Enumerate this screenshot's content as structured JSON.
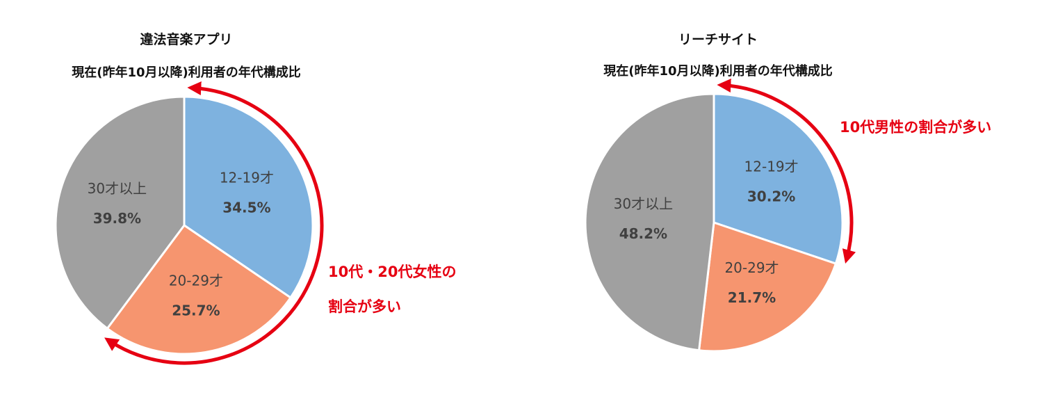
{
  "colors": {
    "age_12_19": "#7EB2DF",
    "age_20_29": "#F6956F",
    "age_30_plus": "#A0A0A0",
    "annotation_red": "#E60012",
    "label_text": "#404040",
    "title_text": "#111111"
  },
  "chart_data": [
    {
      "type": "pie",
      "title": "違法音楽アプリ",
      "subtitle": "現在(昨年10月以降)利用者の年代構成比",
      "slices": [
        {
          "label": "12-19才",
          "value": 34.5,
          "value_text": "34.5%",
          "color_key": "age_12_19"
        },
        {
          "label": "20-29才",
          "value": 25.7,
          "value_text": "25.7%",
          "color_key": "age_20_29"
        },
        {
          "label": "30才以上",
          "value": 39.8,
          "value_text": "39.8%",
          "color_key": "age_30_plus"
        }
      ],
      "annotation": {
        "lines": [
          "10代・20代女性の",
          "割合が多い"
        ],
        "arrow": "clockwise arc covering 12-19才 and 20-29才"
      }
    },
    {
      "type": "pie",
      "title": "リーチサイト",
      "subtitle": "現在(昨年10月以降)利用者の年代構成比",
      "slices": [
        {
          "label": "12-19才",
          "value": 30.2,
          "value_text": "30.2%",
          "color_key": "age_12_19"
        },
        {
          "label": "20-29才",
          "value": 21.7,
          "value_text": "21.7%",
          "color_key": "age_20_29"
        },
        {
          "label": "30才以上",
          "value": 48.2,
          "value_text": "48.2%",
          "color_key": "age_30_plus"
        }
      ],
      "annotation": {
        "lines": [
          "10代男性の割合が多い"
        ],
        "arrow": "clockwise arc covering 12-19才"
      }
    }
  ]
}
